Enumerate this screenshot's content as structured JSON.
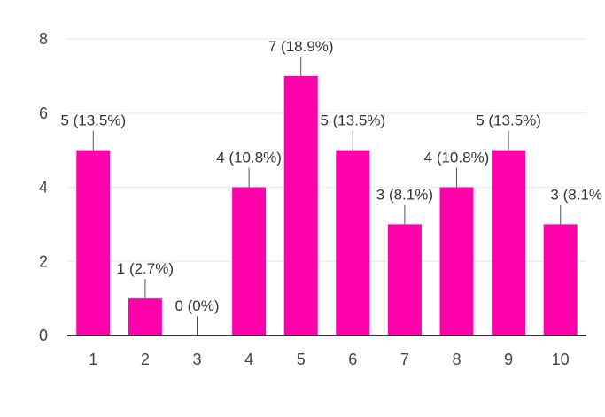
{
  "chart_data": {
    "type": "bar",
    "categories": [
      "1",
      "2",
      "3",
      "4",
      "5",
      "6",
      "7",
      "8",
      "9",
      "10"
    ],
    "values": [
      5,
      1,
      0,
      4,
      7,
      5,
      3,
      4,
      5,
      3
    ],
    "data_labels": [
      "5 (13.5%)",
      "1 (2.7%)",
      "0 (0%)",
      "4 (10.8%)",
      "7 (18.9%)",
      "5 (13.5%)",
      "3 (8.1%)",
      "4 (10.8%)",
      "5 (13.5%)",
      "3 (8.1%"
    ],
    "y_ticks": [
      "0",
      "2",
      "4",
      "6",
      "8"
    ],
    "ylim": [
      0,
      8
    ],
    "grid": true,
    "bar_color": "#FF00AA",
    "title": "",
    "xlabel": "",
    "ylabel": ""
  }
}
